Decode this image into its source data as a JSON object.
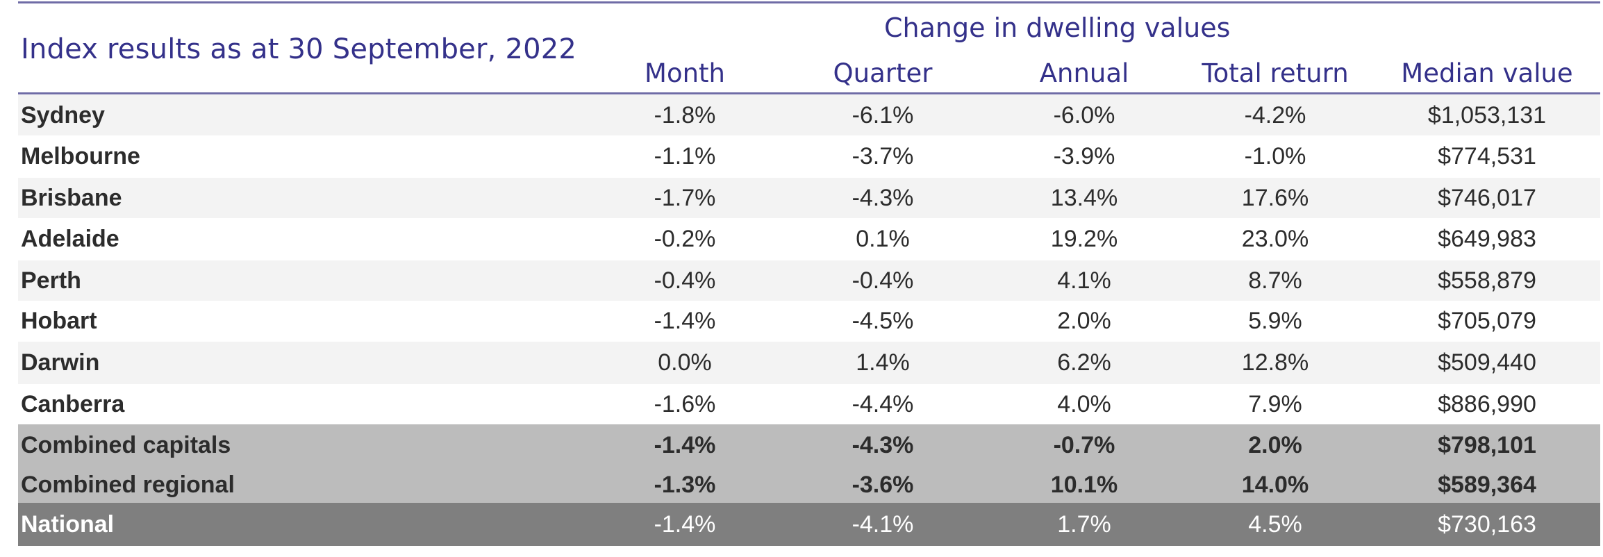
{
  "title": "Index results as at 30 September, 2022",
  "group_header": "Change in dwelling values",
  "columns": [
    "Month",
    "Quarter",
    "Annual",
    "Total return",
    "Median value"
  ],
  "colors": {
    "header_text": "#34318a",
    "rule": "#6f6ca6",
    "row_stripe": "#f3f3f3",
    "row_plain": "#ffffff",
    "combined_bg": "#bcbcbc",
    "national_bg": "#7f7f7f",
    "national_text": "#ffffff",
    "body_text": "#2c2c2c"
  },
  "chart_data": {
    "type": "table",
    "title": "Index results as at 30 September, 2022",
    "group_header": "Change in dwelling values",
    "columns": [
      "Month",
      "Quarter",
      "Annual",
      "Total return",
      "Median value"
    ],
    "rows": [
      {
        "name": "Sydney",
        "month": "-1.8%",
        "quarter": "-6.1%",
        "annual": "-6.0%",
        "total_return": "-4.2%",
        "median_value": "$1,053,131",
        "style": "stripe"
      },
      {
        "name": "Melbourne",
        "month": "-1.1%",
        "quarter": "-3.7%",
        "annual": "-3.9%",
        "total_return": "-1.0%",
        "median_value": "$774,531",
        "style": "plain"
      },
      {
        "name": "Brisbane",
        "month": "-1.7%",
        "quarter": "-4.3%",
        "annual": "13.4%",
        "total_return": "17.6%",
        "median_value": "$746,017",
        "style": "stripe"
      },
      {
        "name": "Adelaide",
        "month": "-0.2%",
        "quarter": "0.1%",
        "annual": "19.2%",
        "total_return": "23.0%",
        "median_value": "$649,983",
        "style": "plain"
      },
      {
        "name": "Perth",
        "month": "-0.4%",
        "quarter": "-0.4%",
        "annual": "4.1%",
        "total_return": "8.7%",
        "median_value": "$558,879",
        "style": "stripe"
      },
      {
        "name": "Hobart",
        "month": "-1.4%",
        "quarter": "-4.5%",
        "annual": "2.0%",
        "total_return": "5.9%",
        "median_value": "$705,079",
        "style": "plain"
      },
      {
        "name": "Darwin",
        "month": "0.0%",
        "quarter": "1.4%",
        "annual": "6.2%",
        "total_return": "12.8%",
        "median_value": "$509,440",
        "style": "stripe"
      },
      {
        "name": "Canberra",
        "month": "-1.6%",
        "quarter": "-4.4%",
        "annual": "4.0%",
        "total_return": "7.9%",
        "median_value": "$886,990",
        "style": "plain"
      },
      {
        "name": "Combined capitals",
        "month": "-1.4%",
        "quarter": "-4.3%",
        "annual": "-0.7%",
        "total_return": "2.0%",
        "median_value": "$798,101",
        "style": "combined"
      },
      {
        "name": "Combined regional",
        "month": "-1.3%",
        "quarter": "-3.6%",
        "annual": "10.1%",
        "total_return": "14.0%",
        "median_value": "$589,364",
        "style": "combined"
      },
      {
        "name": "National",
        "month": "-1.4%",
        "quarter": "-4.1%",
        "annual": "1.7%",
        "total_return": "4.5%",
        "median_value": "$730,163",
        "style": "national"
      }
    ]
  }
}
